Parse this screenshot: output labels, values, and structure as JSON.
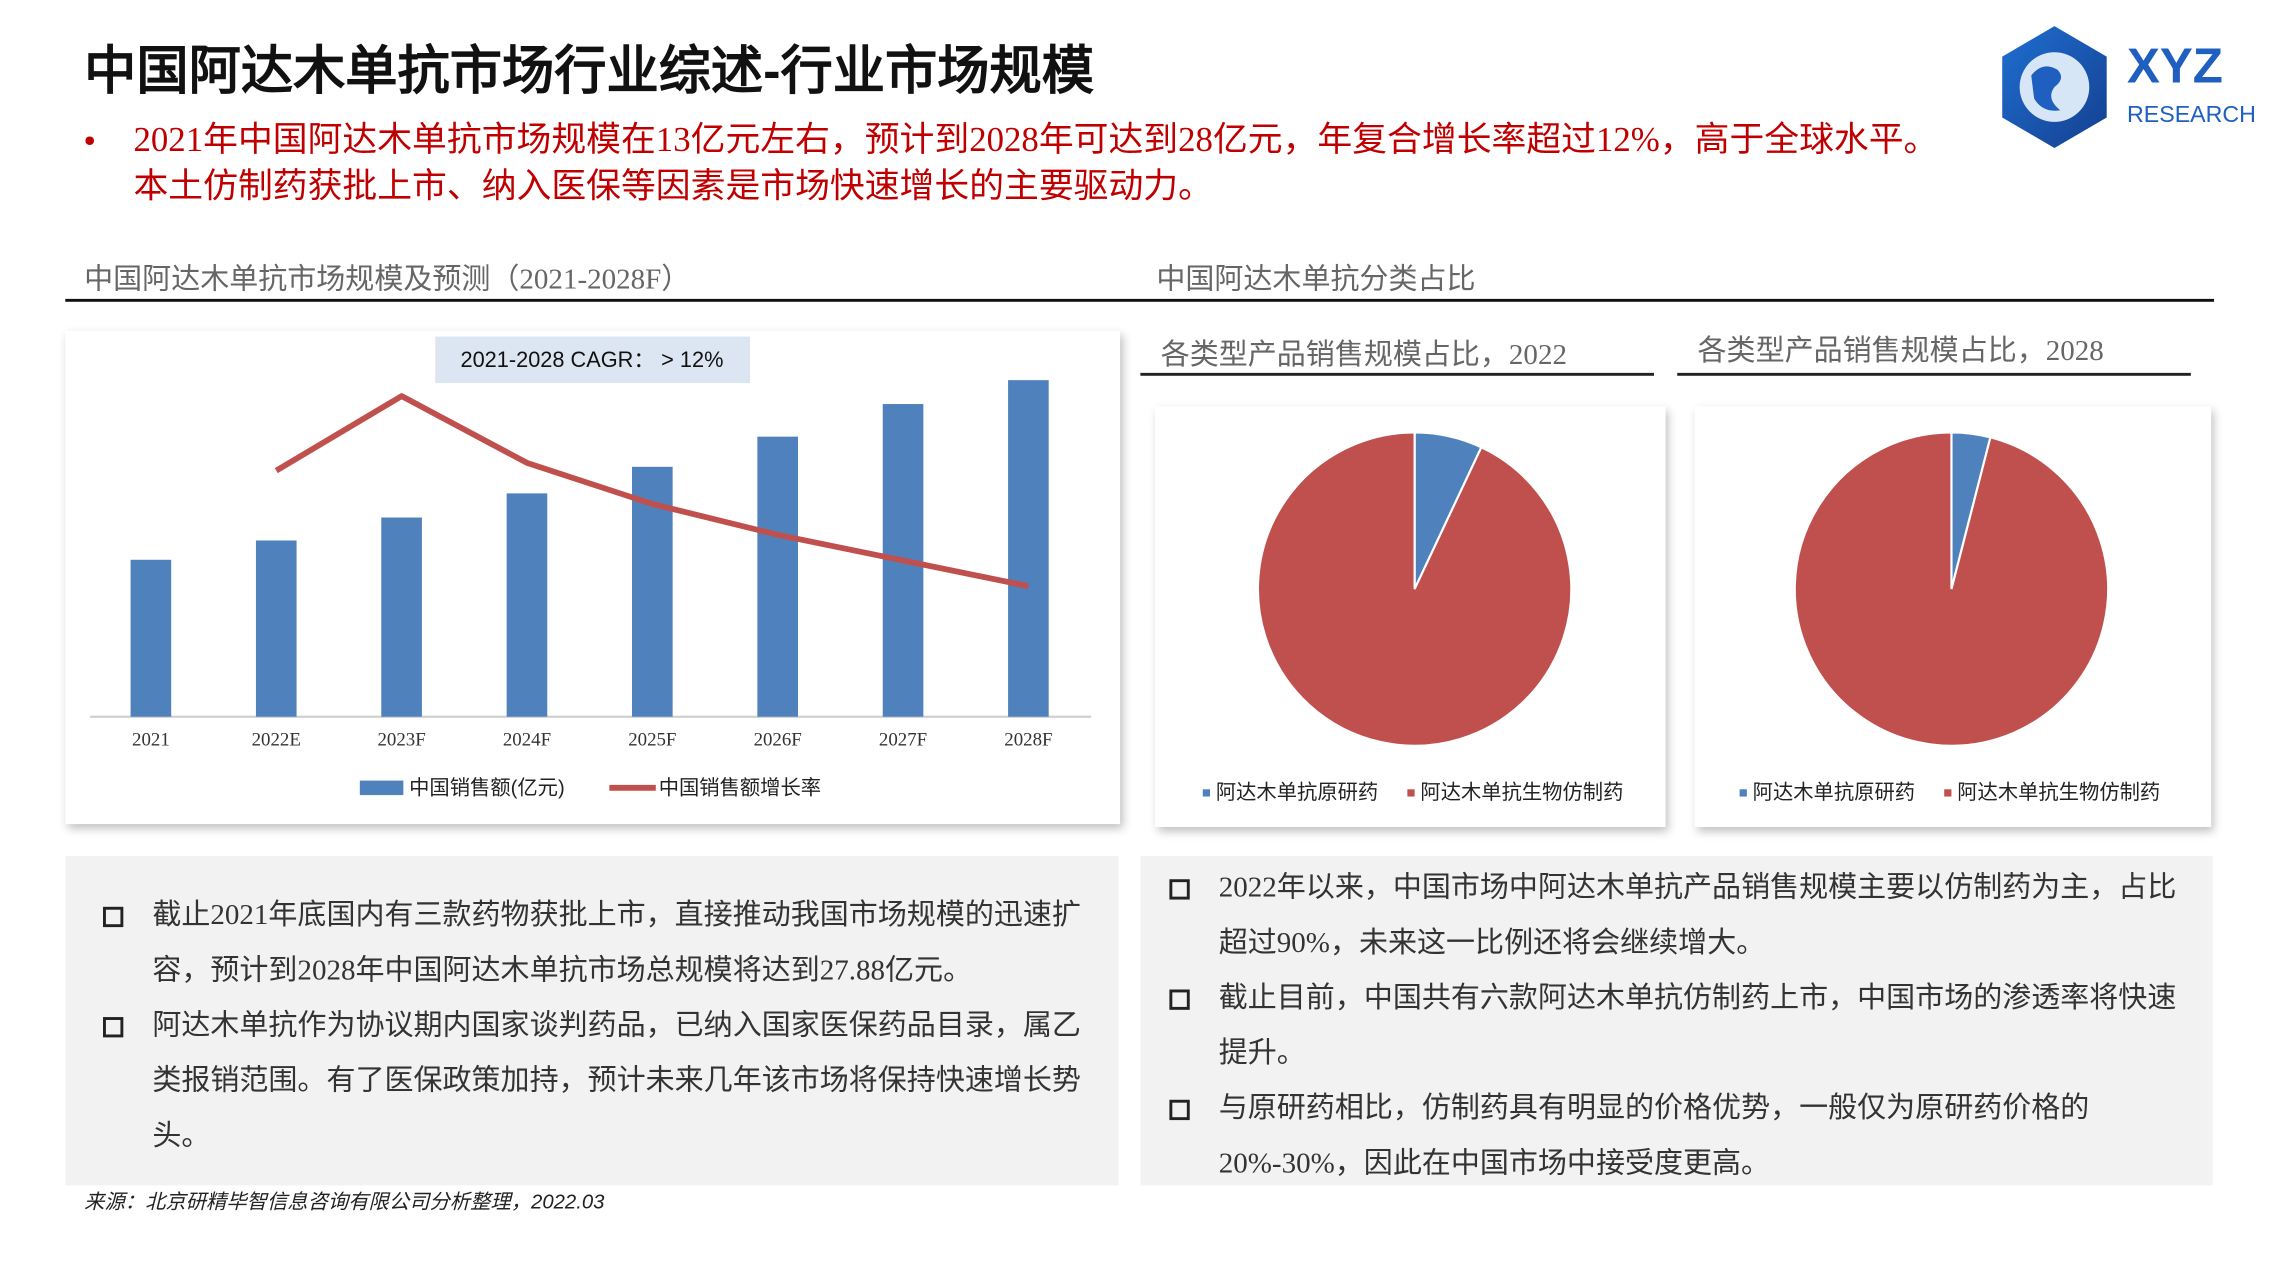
{
  "header": {
    "title": "中国阿达木单抗市场行业综述-行业市场规模",
    "summary": "2021年中国阿达木单抗市场规模在13亿元左右，预计到2028年可达到28亿元，年复合增长率超过12%，高于全球水平。本土仿制药获批上市、纳入医保等因素是市场快速增长的主要驱动力。"
  },
  "logo": {
    "name": "XYZ",
    "subtitle": "RESEARCH"
  },
  "sections": {
    "left": "中国阿达木单抗市场规模及预测（2021-2028F）",
    "right": "中国阿达木单抗分类占比"
  },
  "chart_data": [
    {
      "type": "bar",
      "annotation": "2021-2028 CAGR：  > 12%",
      "categories": [
        "2021",
        "2022E",
        "2023F",
        "2024F",
        "2025F",
        "2026F",
        "2027F",
        "2028F"
      ],
      "series": [
        {
          "name": "中国销售额(亿元)",
          "type": "bar",
          "color": "#4f81bd",
          "values": [
            13,
            14.6,
            16.5,
            18.5,
            20.7,
            23.2,
            25.9,
            27.88
          ]
        },
        {
          "name": "中国销售额增长率",
          "type": "line",
          "color": "#c0504d",
          "values": [
            null,
            12.3,
            15.2,
            12.6,
            11.0,
            9.8,
            8.8,
            7.8
          ]
        }
      ]
    },
    {
      "type": "pie",
      "title": "各类型产品销售规模占比，2022",
      "categories": [
        "阿达木单抗原研药",
        "阿达木单抗生物仿制药"
      ],
      "values": [
        7,
        93
      ],
      "colors": [
        "#4f81bd",
        "#c0504d"
      ]
    },
    {
      "type": "pie",
      "title": "各类型产品销售规模占比，2028",
      "categories": [
        "阿达木单抗原研药",
        "阿达木单抗生物仿制药"
      ],
      "values": [
        4,
        96
      ],
      "colors": [
        "#4f81bd",
        "#c0504d"
      ]
    }
  ],
  "notes": {
    "left": [
      "截止2021年底国内有三款药物获批上市，直接推动我国市场规模的迅速扩容，预计到2028年中国阿达木单抗市场总规模将达到27.88亿元。",
      "阿达木单抗作为协议期内国家谈判药品，已纳入国家医保药品目录，属乙类报销范围。有了医保政策加持，预计未来几年该市场将保持快速增长势头。"
    ],
    "right": [
      "2022年以来，中国市场中阿达木单抗产品销售规模主要以仿制药为主，占比超过90%，未来这一比例还将会继续增大。",
      "截止目前，中国共有六款阿达木单抗仿制药上市，中国市场的渗透率将快速提升。",
      "与原研药相比，仿制药具有明显的价格优势，一般仅为原研药价格的20%-30%，因此在中国市场中接受度更高。"
    ]
  },
  "source": "来源：北京研精毕智信息咨询有限公司分析整理，2022.03"
}
